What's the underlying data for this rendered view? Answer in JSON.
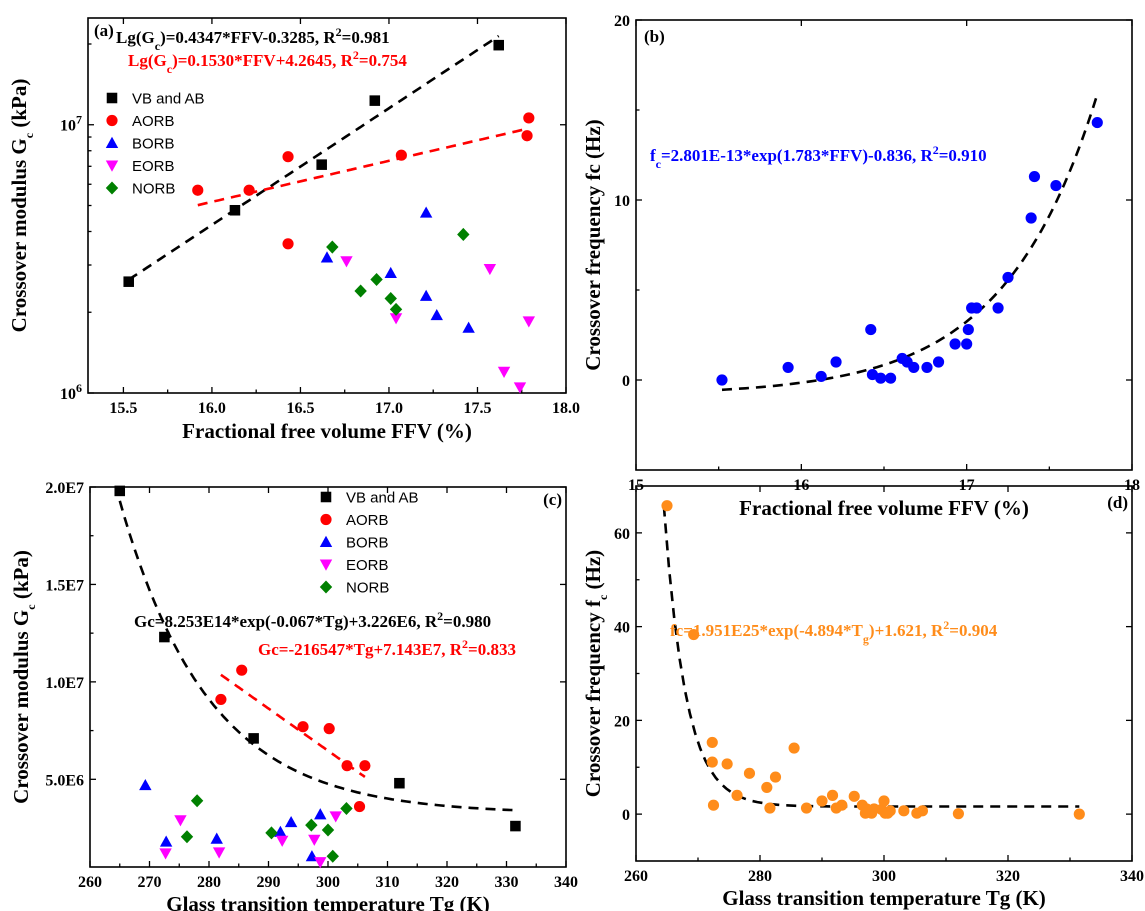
{
  "chart_data": [
    {
      "type": "scatter",
      "panel_label": "(a)",
      "xlabel": "Fractional free volume FFV (%)",
      "ylabel": "Crossover modulus Gc (kPa)",
      "ylabel_main": "Crossover modulus G",
      "ylabel_sub": "c",
      "ylabel_tail": " (kPa)",
      "yscale": "log",
      "xlim": [
        15.3,
        18.0
      ],
      "ylim": [
        1000000,
        25000000
      ],
      "xticks": [
        15.5,
        16.0,
        16.5,
        17.0,
        17.5,
        18.0
      ],
      "xtick_labels": [
        "15.5",
        "16.0",
        "16.5",
        "17.0",
        "17.5",
        "18.0"
      ],
      "yticks": [
        1000000,
        10000000
      ],
      "ytick_labels": [
        "10^6",
        "10^7"
      ],
      "legend": [
        "VB and AB",
        "AORB",
        "BORB",
        "EORB",
        "NORB"
      ],
      "equations": [
        {
          "text": "Lg(Gc)=0.4347*FFV-0.3285, R2=0.981",
          "p1": "Lg(G",
          "s1": "c",
          "p2": ")=0.4347*FFV-0.3285, R",
          "s2": "2",
          "p3": "=0.981",
          "color": "#000000"
        },
        {
          "text": "Lg(Gc)=0.1530*FFV+4.2645, R2=0.754",
          "p1": "Lg(G",
          "s1": "c",
          "p2": ")=0.1530*FFV+4.2645, R",
          "s2": "2",
          "p3": "=0.754",
          "color": "#ff0000"
        }
      ],
      "series": [
        {
          "name": "VB and AB",
          "marker": "square",
          "color": "#000000",
          "x": [
            15.53,
            16.13,
            16.62,
            16.92,
            17.62
          ],
          "y": [
            2600000,
            4800000,
            7100000,
            12300000,
            19800000
          ]
        },
        {
          "name": "AORB",
          "marker": "circle",
          "color": "#ff0000",
          "x": [
            15.92,
            16.21,
            16.43,
            16.43,
            17.07,
            17.78,
            17.79
          ],
          "y": [
            5700000,
            5700000,
            7600000,
            3600000,
            7700000,
            9100000,
            10600000
          ]
        },
        {
          "name": "BORB",
          "marker": "triangle-up",
          "color": "#0000ff",
          "x": [
            16.65,
            17.01,
            17.21,
            17.21,
            17.27,
            17.45
          ],
          "y": [
            3200000,
            2800000,
            4700000,
            2300000,
            1950000,
            1750000
          ]
        },
        {
          "name": "EORB",
          "marker": "triangle-down",
          "color": "#ff00ff",
          "x": [
            16.76,
            17.04,
            17.57,
            17.65,
            17.74,
            17.79
          ],
          "y": [
            3100000,
            1900000,
            2900000,
            1200000,
            1050000,
            1850000
          ]
        },
        {
          "name": "NORB",
          "marker": "diamond",
          "color": "#008000",
          "x": [
            16.68,
            16.84,
            16.93,
            17.01,
            17.04,
            17.42
          ],
          "y": [
            3500000,
            2400000,
            2650000,
            2250000,
            2050000,
            3900000
          ]
        }
      ],
      "fits": [
        {
          "color": "#000000",
          "x0": 15.53,
          "x1": 17.62,
          "slope": 0.4347,
          "intercept": -0.3285,
          "form": "log10"
        },
        {
          "color": "#ff0000",
          "x0": 15.92,
          "x1": 17.79,
          "slope": 0.153,
          "intercept": 4.2645,
          "form": "log10"
        }
      ]
    },
    {
      "type": "scatter",
      "panel_label": "(b)",
      "xlabel": "Fractional free volume FFV (%)",
      "ylabel": "Crossover frequency fc (Hz)",
      "xlim": [
        15,
        18
      ],
      "ylim": [
        -5,
        20
      ],
      "xticks": [
        15,
        16,
        17,
        18
      ],
      "xtick_labels": [
        "15",
        "16",
        "17",
        "18"
      ],
      "yticks": [
        0,
        10,
        20
      ],
      "ytick_labels": [
        "0",
        "10",
        "20"
      ],
      "equations": [
        {
          "text": "fc=2.801E-13*exp(1.783*FFV)-0.836, R2=0.910",
          "p1": "f",
          "s1": "c",
          "p2": "=2.801E-13*exp(1.783*FFV)-0.836, R",
          "s2": "2",
          "p3": "=0.910",
          "color": "#0000ff"
        }
      ],
      "series": [
        {
          "name": "",
          "marker": "circle",
          "color": "#0000ff",
          "x": [
            15.52,
            15.92,
            16.12,
            16.21,
            16.42,
            16.43,
            16.48,
            16.54,
            16.61,
            16.64,
            16.68,
            16.76,
            16.83,
            16.93,
            17.0,
            17.01,
            17.03,
            17.06,
            17.19,
            17.25,
            17.39,
            17.41,
            17.54,
            17.79
          ],
          "y": [
            0.0,
            0.7,
            0.2,
            1.0,
            2.8,
            0.3,
            0.1,
            0.1,
            1.2,
            1.0,
            0.7,
            0.7,
            1.0,
            2.0,
            2.0,
            2.8,
            4.0,
            4.0,
            4.0,
            5.7,
            9.0,
            11.3,
            10.8,
            14.3
          ]
        }
      ],
      "fits": [
        {
          "color": "#000000",
          "x0": 15.52,
          "x1": 17.79,
          "a": 2.801e-13,
          "b": 1.783,
          "c": -0.836,
          "form": "exp"
        }
      ]
    },
    {
      "type": "scatter",
      "panel_label": "(c)",
      "xlabel": "Glass transition temperature Tg (K)",
      "ylabel": "Crossover modulus Gc (kPa)",
      "ylabel_main": "Crossover modulus G",
      "ylabel_sub": "c",
      "ylabel_tail": " (kPa)",
      "xlim": [
        260,
        340
      ],
      "ylim": [
        500000,
        20000000
      ],
      "xticks": [
        260,
        270,
        280,
        290,
        300,
        310,
        320,
        330,
        340
      ],
      "xtick_labels": [
        "260",
        "270",
        "280",
        "290",
        "300",
        "310",
        "320",
        "330",
        "340"
      ],
      "yticks": [
        5000000,
        10000000,
        15000000,
        20000000
      ],
      "ytick_labels": [
        "5.0E6",
        "1.0E7",
        "1.5E7",
        "2.0E7"
      ],
      "legend": [
        "VB and AB",
        "AORB",
        "BORB",
        "EORB",
        "NORB"
      ],
      "equations": [
        {
          "text": "Gc=8.253E14*exp(-0.067*Tg)+3.226E6, R2=0.980",
          "p1": "Gc=8.253E14*exp(-0.067*Tg)+3.226E6, R",
          "s2": "2",
          "p3": "=0.980",
          "color": "#000000"
        },
        {
          "text": "Gc=-216547*Tg+7.143E7, R2=0.833",
          "p1": "Gc=-216547*Tg+7.143E7, R",
          "s2": "2",
          "p3": "=0.833",
          "color": "#ff0000"
        }
      ],
      "series": [
        {
          "name": "VB and AB",
          "marker": "square",
          "color": "#000000",
          "x": [
            265,
            272.5,
            287.5,
            312,
            331.5
          ],
          "y": [
            19800000,
            12300000,
            7100000,
            4800000,
            2600000
          ]
        },
        {
          "name": "AORB",
          "marker": "circle",
          "color": "#ff0000",
          "x": [
            282,
            285.5,
            295.8,
            300.2,
            303.2,
            305.3,
            306.2
          ],
          "y": [
            9100000,
            10600000,
            7700000,
            7600000,
            5700000,
            3600000,
            5700000
          ]
        },
        {
          "name": "BORB",
          "marker": "triangle-up",
          "color": "#0000ff",
          "x": [
            269.3,
            272.8,
            281.3,
            292,
            293.8,
            297.3,
            298.7
          ],
          "y": [
            4700000,
            1800000,
            1950000,
            2300000,
            2800000,
            1050000,
            3200000
          ]
        },
        {
          "name": "EORB",
          "marker": "triangle-down",
          "color": "#ff00ff",
          "x": [
            272.7,
            275.2,
            281.7,
            292.3,
            297.7,
            298.7,
            301.3
          ],
          "y": [
            1200000,
            2900000,
            1250000,
            1850000,
            1900000,
            750000,
            3100000
          ]
        },
        {
          "name": "NORB",
          "marker": "diamond",
          "color": "#008000",
          "x": [
            276.3,
            278,
            290.5,
            297.2,
            300,
            300.8,
            303.1
          ],
          "y": [
            2050000,
            3900000,
            2250000,
            2650000,
            2400000,
            1050000,
            3500000
          ]
        }
      ],
      "fits": [
        {
          "color": "#000000",
          "x0": 265,
          "x1": 331.5,
          "a": 825300000000000.0,
          "b": -0.067,
          "c": 3226000,
          "form": "exp"
        },
        {
          "color": "#ff0000",
          "x0": 282,
          "x1": 306.2,
          "slope": -216547,
          "intercept": 71430000,
          "form": "linear"
        }
      ]
    },
    {
      "type": "scatter",
      "panel_label": "(d)",
      "xlabel": "Glass transition temperature Tg (K)",
      "ylabel": "Crossover frequency fc (Hz)",
      "ylabel_main": "Crossover frequency f",
      "ylabel_sub": "c",
      "ylabel_tail": " (Hz)",
      "xlim": [
        260,
        340
      ],
      "ylim": [
        -10,
        70
      ],
      "xticks": [
        260,
        280,
        300,
        320,
        340
      ],
      "xtick_labels": [
        "260",
        "280",
        "300",
        "320",
        "340"
      ],
      "yticks": [
        0,
        20,
        40,
        60
      ],
      "ytick_labels": [
        "0",
        "20",
        "40",
        "60"
      ],
      "equations": [
        {
          "text": "fc=1.951E25*exp(-4.894*Tg)+1.621, R2=0.904",
          "p1": "fc=1.951E25*exp(-4.894*T",
          "s1": "g",
          "p2": ")+1.621, R",
          "s2": "2",
          "p3": "=0.904",
          "color": "#ff8c1a"
        }
      ],
      "series": [
        {
          "name": "",
          "marker": "circle",
          "color": "#ff8c1a",
          "x": [
            265,
            269.3,
            272.3,
            272.3,
            272.5,
            274.7,
            276.3,
            278.3,
            281.1,
            281.6,
            282.5,
            285.5,
            287.5,
            290,
            291.7,
            292.3,
            293.2,
            295.2,
            296.5,
            297,
            297.2,
            298,
            298.4,
            299.6,
            300,
            300.2,
            300.6,
            301,
            303.2,
            305.3,
            306.2,
            312,
            331.5
          ],
          "y": [
            65.8,
            38.3,
            15.3,
            11.1,
            1.9,
            10.7,
            4.0,
            8.7,
            5.7,
            1.3,
            7.9,
            14.1,
            1.3,
            2.8,
            4.0,
            1.3,
            1.9,
            3.8,
            1.9,
            0.2,
            1.1,
            0.2,
            1.1,
            1.0,
            2.8,
            0.2,
            0.2,
            0.7,
            0.7,
            0.2,
            0.7,
            0.1,
            0.0
          ]
        }
      ],
      "fits": [
        {
          "color": "#000000",
          "x0": 264.5,
          "x1": 331.5,
          "decay": 0.28,
          "amp": 64,
          "c": 1.621,
          "form": "decay"
        }
      ]
    }
  ]
}
